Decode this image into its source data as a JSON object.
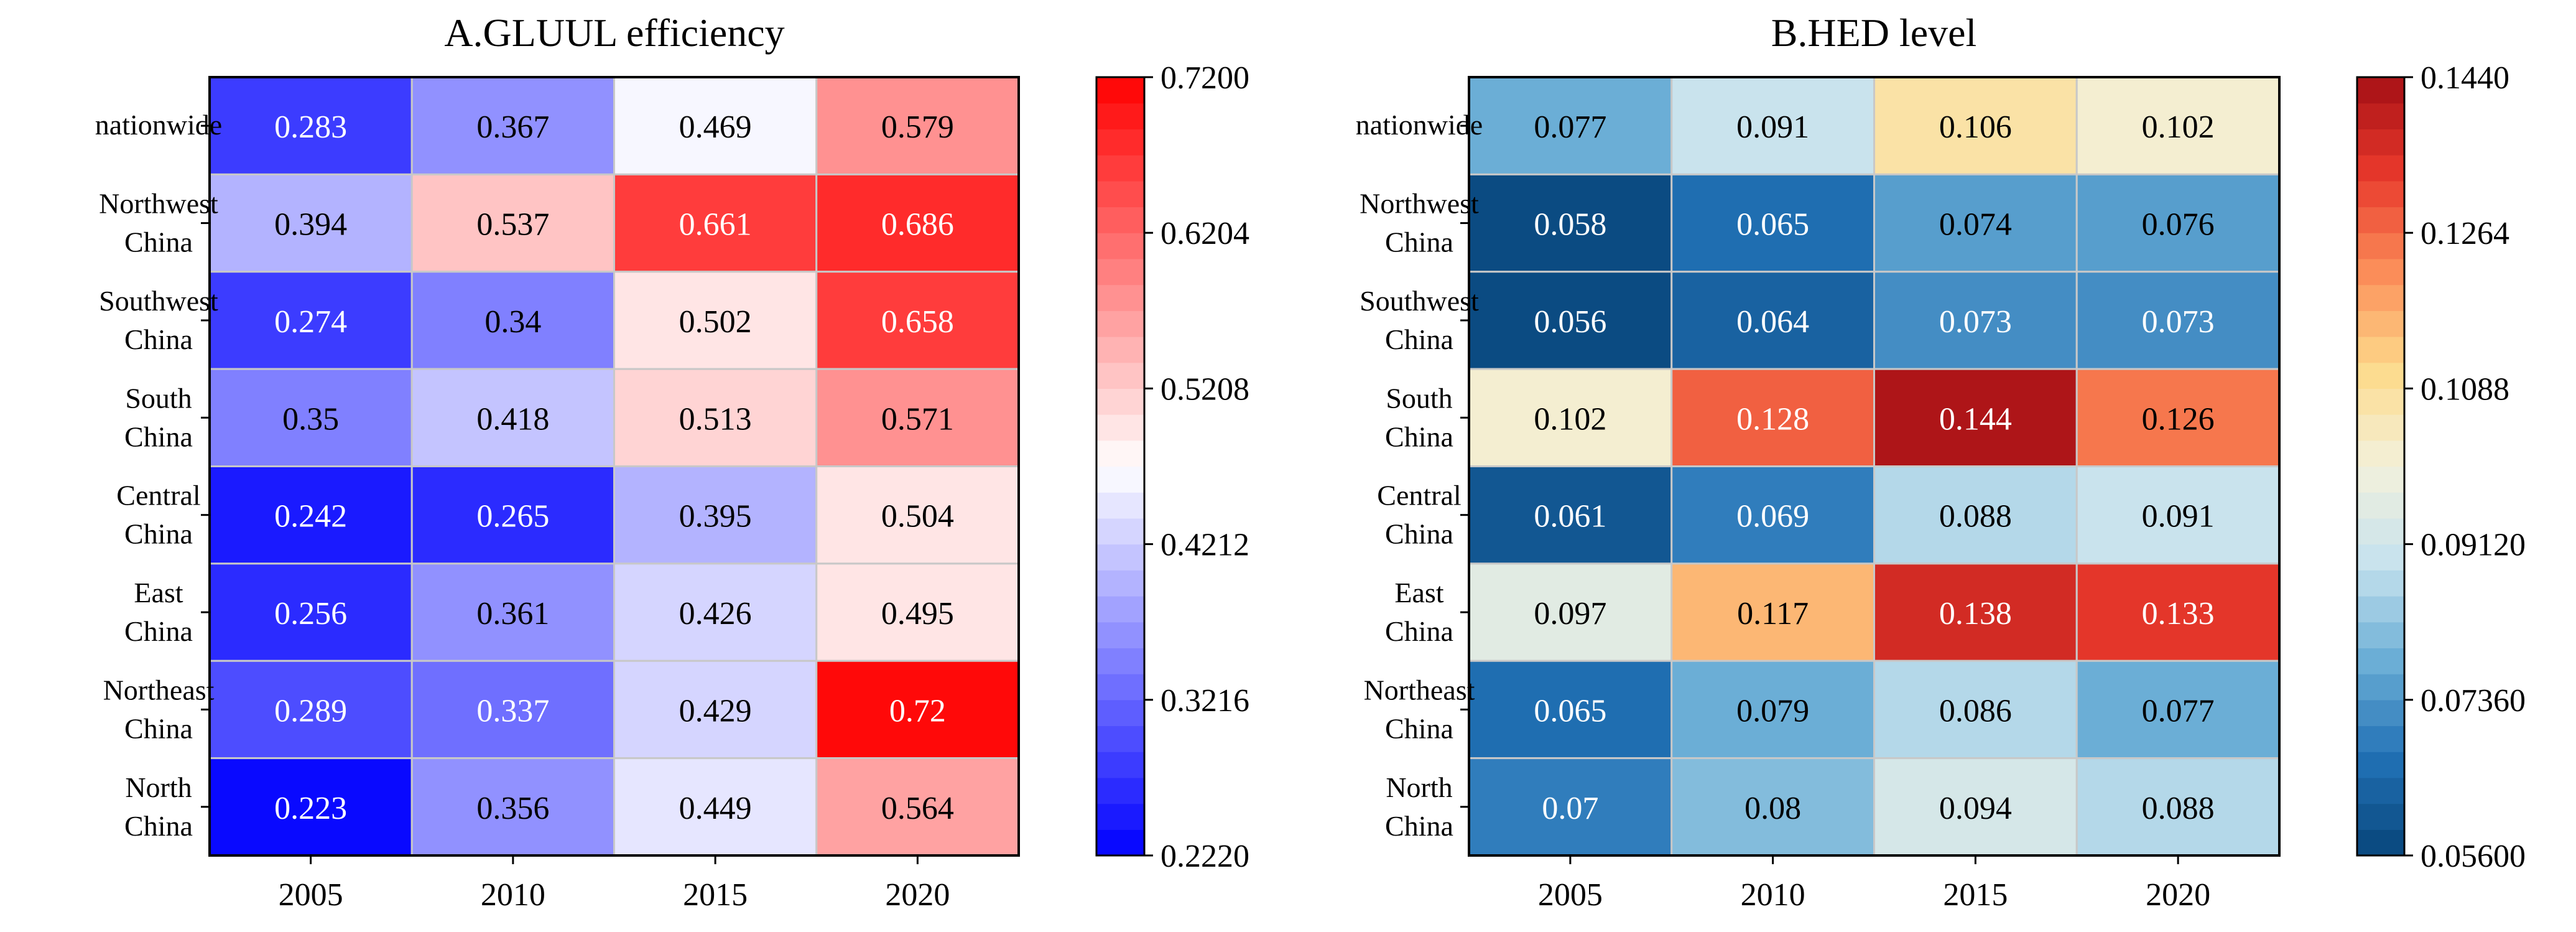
{
  "chart_data": [
    {
      "type": "heatmap",
      "title": "A.GLUUL efficiency",
      "columns": [
        "2005",
        "2010",
        "2015",
        "2020"
      ],
      "rows": [
        {
          "label": [
            "nationwide"
          ],
          "values": [
            0.283,
            0.367,
            0.469,
            0.579
          ],
          "value_labels": [
            "0.283",
            "0.367",
            "0.469",
            "0.579"
          ]
        },
        {
          "label": [
            "Northwest",
            "China"
          ],
          "values": [
            0.394,
            0.537,
            0.661,
            0.686
          ],
          "value_labels": [
            "0.394",
            "0.537",
            "0.661",
            "0.686"
          ]
        },
        {
          "label": [
            "Southwest",
            "China"
          ],
          "values": [
            0.274,
            0.34,
            0.502,
            0.658
          ],
          "value_labels": [
            "0.274",
            "0.34",
            "0.502",
            "0.658"
          ]
        },
        {
          "label": [
            "South",
            "China"
          ],
          "values": [
            0.35,
            0.418,
            0.513,
            0.571
          ],
          "value_labels": [
            "0.35",
            "0.418",
            "0.513",
            "0.571"
          ]
        },
        {
          "label": [
            "Central",
            "China"
          ],
          "values": [
            0.242,
            0.265,
            0.395,
            0.504
          ],
          "value_labels": [
            "0.242",
            "0.265",
            "0.395",
            "0.504"
          ]
        },
        {
          "label": [
            "East",
            "China"
          ],
          "values": [
            0.256,
            0.361,
            0.426,
            0.495
          ],
          "value_labels": [
            "0.256",
            "0.361",
            "0.426",
            "0.495"
          ]
        },
        {
          "label": [
            "Northeast",
            "China"
          ],
          "values": [
            0.289,
            0.337,
            0.429,
            0.72
          ],
          "value_labels": [
            "0.289",
            "0.337",
            "0.429",
            "0.72"
          ]
        },
        {
          "label": [
            "North",
            "China"
          ],
          "values": [
            0.223,
            0.356,
            0.449,
            0.564
          ],
          "value_labels": [
            "0.223",
            "0.356",
            "0.449",
            "0.564"
          ]
        }
      ],
      "colorbar": {
        "min": 0.222,
        "max": 0.72,
        "levels": 30,
        "ticks": [
          "0.7200",
          "0.6204",
          "0.5208",
          "0.4212",
          "0.3216",
          "0.2220"
        ],
        "colormap": "bwr",
        "colors": [
          "#0000ff",
          "#ffffff",
          "#ff0000"
        ]
      }
    },
    {
      "type": "heatmap",
      "title": "B.HED level",
      "columns": [
        "2005",
        "2010",
        "2015",
        "2020"
      ],
      "rows": [
        {
          "label": [
            "nationwide"
          ],
          "values": [
            0.077,
            0.091,
            0.106,
            0.102
          ],
          "value_labels": [
            "0.077",
            "0.091",
            "0.106",
            "0.102"
          ]
        },
        {
          "label": [
            "Northwest",
            "China"
          ],
          "values": [
            0.058,
            0.065,
            0.074,
            0.076
          ],
          "value_labels": [
            "0.058",
            "0.065",
            "0.074",
            "0.076"
          ]
        },
        {
          "label": [
            "Southwest",
            "China"
          ],
          "values": [
            0.056,
            0.064,
            0.073,
            0.073
          ],
          "value_labels": [
            "0.056",
            "0.064",
            "0.073",
            "0.073"
          ]
        },
        {
          "label": [
            "South",
            "China"
          ],
          "values": [
            0.102,
            0.128,
            0.144,
            0.126
          ],
          "value_labels": [
            "0.102",
            "0.128",
            "0.144",
            "0.126"
          ]
        },
        {
          "label": [
            "Central",
            "China"
          ],
          "values": [
            0.061,
            0.069,
            0.088,
            0.091
          ],
          "value_labels": [
            "0.061",
            "0.069",
            "0.088",
            "0.091"
          ]
        },
        {
          "label": [
            "East",
            "China"
          ],
          "values": [
            0.097,
            0.117,
            0.138,
            0.133
          ],
          "value_labels": [
            "0.097",
            "0.117",
            "0.138",
            "0.133"
          ]
        },
        {
          "label": [
            "Northeast",
            "China"
          ],
          "values": [
            0.065,
            0.079,
            0.086,
            0.077
          ],
          "value_labels": [
            "0.065",
            "0.079",
            "0.086",
            "0.077"
          ]
        },
        {
          "label": [
            "North",
            "China"
          ],
          "values": [
            0.07,
            0.08,
            0.094,
            0.088
          ],
          "value_labels": [
            "0.07",
            "0.08",
            "0.094",
            "0.088"
          ]
        }
      ],
      "colorbar": {
        "min": 0.056,
        "max": 0.144,
        "levels": 30,
        "ticks": [
          "0.1440",
          "0.1264",
          "0.1088",
          "0.09120",
          "0.07360",
          "0.05600"
        ],
        "colormap": "RdYlBu_r",
        "colors": [
          "#08457a",
          "#2171b5",
          "#6baed6",
          "#c6e2ee",
          "#f3f1dc",
          "#fddb8b",
          "#fb8d59",
          "#e8392c",
          "#a50f15"
        ]
      }
    }
  ]
}
